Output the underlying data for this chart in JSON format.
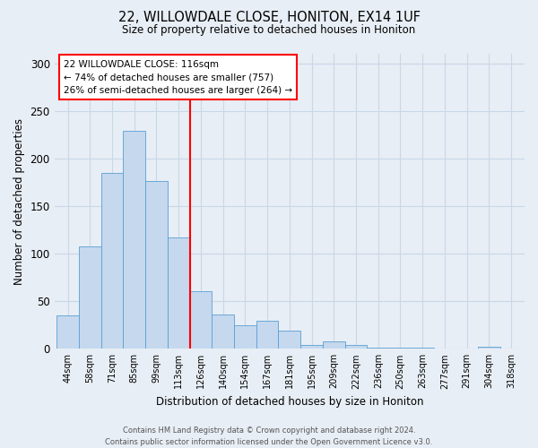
{
  "title": "22, WILLOWDALE CLOSE, HONITON, EX14 1UF",
  "subtitle": "Size of property relative to detached houses in Honiton",
  "xlabel": "Distribution of detached houses by size in Honiton",
  "ylabel": "Number of detached properties",
  "bin_labels": [
    "44sqm",
    "58sqm",
    "71sqm",
    "85sqm",
    "99sqm",
    "113sqm",
    "126sqm",
    "140sqm",
    "154sqm",
    "167sqm",
    "181sqm",
    "195sqm",
    "209sqm",
    "222sqm",
    "236sqm",
    "250sqm",
    "263sqm",
    "277sqm",
    "291sqm",
    "304sqm",
    "318sqm"
  ],
  "bar_heights": [
    35,
    108,
    185,
    229,
    176,
    117,
    61,
    36,
    25,
    29,
    19,
    4,
    8,
    4,
    1,
    1,
    1,
    0,
    0,
    2,
    0
  ],
  "bar_color": "#c5d8ee",
  "bar_edge_color": "#5a9fd4",
  "vline_color": "red",
  "vline_bin_index": 6,
  "ylim": [
    0,
    310
  ],
  "yticks": [
    0,
    50,
    100,
    150,
    200,
    250,
    300
  ],
  "annotation_title": "22 WILLOWDALE CLOSE: 116sqm",
  "annotation_line1": "← 74% of detached houses are smaller (757)",
  "annotation_line2": "26% of semi-detached houses are larger (264) →",
  "footer_line1": "Contains HM Land Registry data © Crown copyright and database right 2024.",
  "footer_line2": "Contains public sector information licensed under the Open Government Licence v3.0.",
  "background_color": "#e8eef5",
  "grid_color": "#c8d8e8"
}
